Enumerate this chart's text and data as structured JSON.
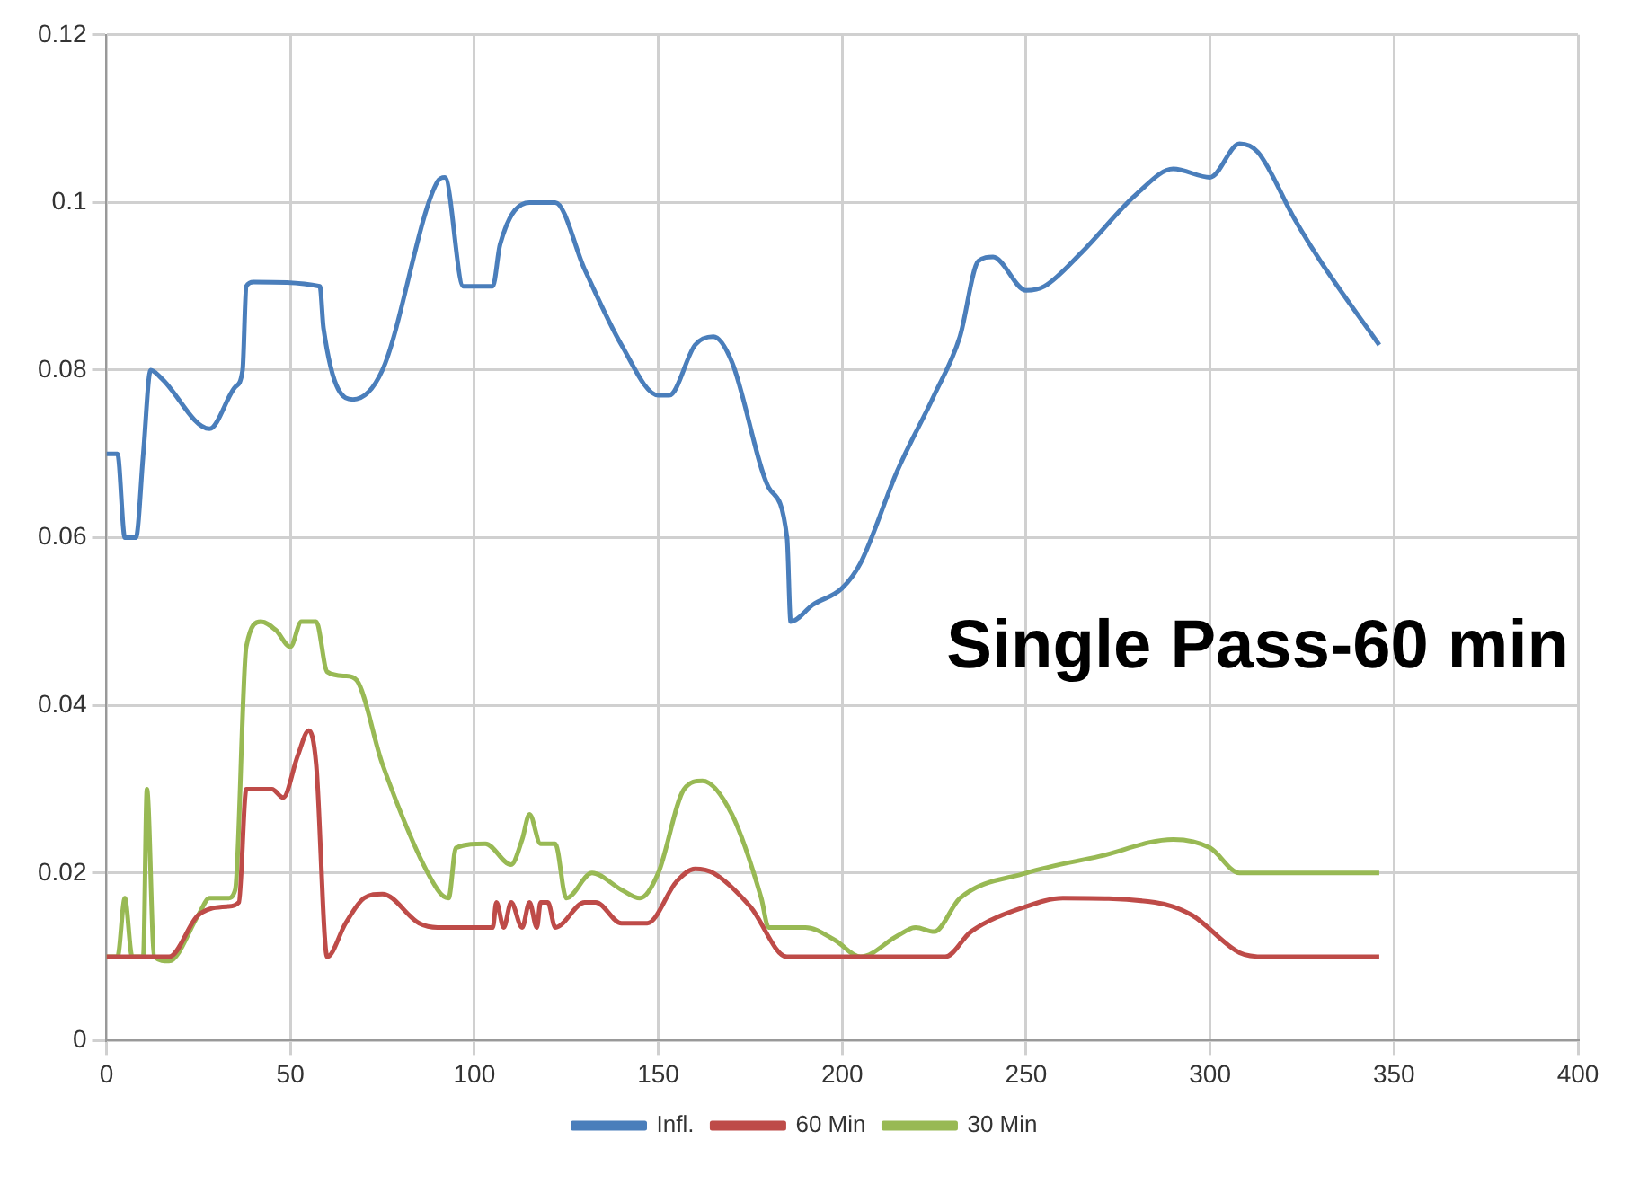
{
  "chart_data": {
    "type": "line",
    "annotations": [
      "Single Pass-60 min"
    ],
    "xlim": [
      0,
      400
    ],
    "xticks": [
      0,
      50,
      100,
      150,
      200,
      250,
      300,
      350,
      400
    ],
    "ylim": [
      0,
      0.12
    ],
    "yticks": [
      0,
      0.02,
      0.04,
      0.06,
      0.08,
      0.1,
      0.12
    ],
    "grid": true,
    "legend": "bottom",
    "marker": "none",
    "line_style": "solid",
    "series": [
      {
        "name": "Infl.",
        "color": "#4a7ebb",
        "x": [
          0,
          3,
          5,
          8,
          10,
          12,
          15,
          28,
          35,
          37,
          38,
          40,
          58,
          59,
          67,
          75,
          90,
          92,
          97,
          105,
          107,
          115,
          122,
          130,
          140,
          150,
          153,
          160,
          165,
          170,
          180,
          185,
          186,
          192,
          200,
          205,
          215,
          225,
          232,
          237,
          241,
          250,
          255,
          265,
          280,
          290,
          300,
          308,
          313,
          323,
          330,
          346
        ],
        "values": [
          0.07,
          0.07,
          0.06,
          0.06,
          0.07,
          0.08,
          0.079,
          0.073,
          0.078,
          0.08,
          0.09,
          0.0905,
          0.09,
          0.085,
          0.0765,
          0.08,
          0.1025,
          0.103,
          0.09,
          0.09,
          0.095,
          0.1,
          0.1,
          0.092,
          0.083,
          0.077,
          0.077,
          0.083,
          0.084,
          0.081,
          0.066,
          0.06,
          0.05,
          0.052,
          0.054,
          0.057,
          0.068,
          0.077,
          0.084,
          0.093,
          0.0935,
          0.0895,
          0.09,
          0.094,
          0.101,
          0.104,
          0.103,
          0.107,
          0.106,
          0.098,
          0.093,
          0.083
        ]
      },
      {
        "name": "60 Min",
        "color": "#be4b48",
        "x": [
          0,
          17,
          25,
          33,
          36,
          38,
          45,
          48,
          52,
          55,
          57,
          60,
          65,
          70,
          75,
          85,
          90,
          105,
          106,
          108,
          110,
          113,
          115,
          117,
          118,
          120,
          122,
          130,
          133,
          140,
          147,
          155,
          160,
          165,
          175,
          185,
          228,
          235,
          250,
          260,
          285,
          295,
          308,
          315,
          346
        ],
        "values": [
          0.01,
          0.01,
          0.015,
          0.016,
          0.0165,
          0.03,
          0.03,
          0.029,
          0.034,
          0.037,
          0.033,
          0.01,
          0.014,
          0.017,
          0.0175,
          0.014,
          0.0135,
          0.0135,
          0.0165,
          0.0135,
          0.0165,
          0.0135,
          0.0165,
          0.0135,
          0.0165,
          0.0165,
          0.0135,
          0.0165,
          0.0165,
          0.014,
          0.014,
          0.019,
          0.0205,
          0.02,
          0.016,
          0.01,
          0.01,
          0.013,
          0.016,
          0.017,
          0.0165,
          0.015,
          0.0105,
          0.01,
          0.01
        ]
      },
      {
        "name": "30 Min",
        "color": "#98b954",
        "x": [
          0,
          3,
          5,
          7,
          10,
          11,
          13,
          17,
          25,
          28,
          33,
          35,
          38,
          42,
          46,
          50,
          53,
          57,
          60,
          65,
          68,
          75,
          90,
          93,
          95,
          103,
          110,
          113,
          115,
          118,
          122,
          125,
          132,
          140,
          145,
          150,
          157,
          162,
          170,
          178,
          180,
          190,
          198,
          205,
          215,
          220,
          225,
          232,
          250,
          270,
          290,
          300,
          308,
          320,
          346
        ],
        "values": [
          0.01,
          0.01,
          0.017,
          0.01,
          0.01,
          0.03,
          0.01,
          0.0095,
          0.015,
          0.017,
          0.017,
          0.018,
          0.047,
          0.05,
          0.049,
          0.047,
          0.05,
          0.05,
          0.044,
          0.0435,
          0.043,
          0.033,
          0.018,
          0.017,
          0.023,
          0.0235,
          0.021,
          0.024,
          0.027,
          0.0235,
          0.0235,
          0.017,
          0.02,
          0.018,
          0.017,
          0.02,
          0.03,
          0.031,
          0.027,
          0.017,
          0.0135,
          0.0135,
          0.012,
          0.01,
          0.0125,
          0.0135,
          0.013,
          0.017,
          0.02,
          0.022,
          0.024,
          0.023,
          0.02,
          0.02,
          0.02
        ]
      }
    ]
  }
}
